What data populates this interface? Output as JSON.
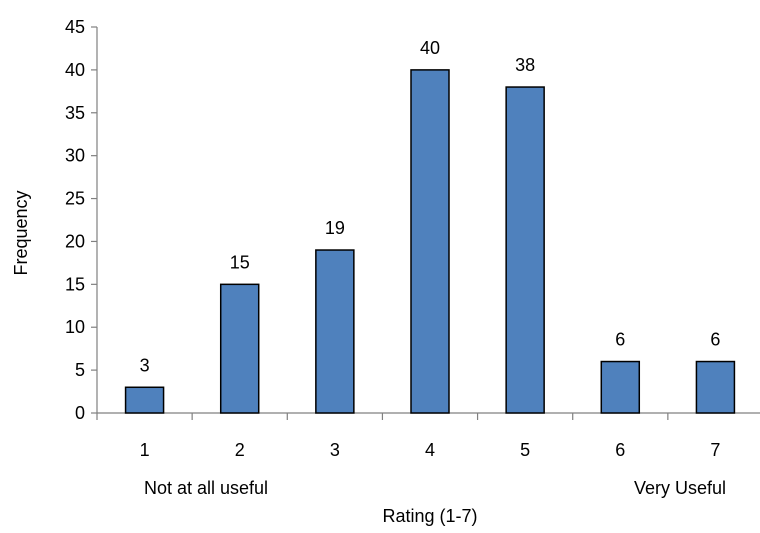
{
  "chart_data": {
    "type": "bar",
    "categories": [
      "1",
      "2",
      "3",
      "4",
      "5",
      "6",
      "7"
    ],
    "values": [
      3,
      15,
      19,
      40,
      38,
      6,
      6
    ],
    "data_labels": [
      "3",
      "15",
      "19",
      "40",
      "38",
      "6",
      "6"
    ],
    "title": "",
    "xlabel": "Rating  (1-7)",
    "ylabel": "Frequency",
    "ylim": [
      0,
      45
    ],
    "yticks": [
      0,
      5,
      10,
      15,
      20,
      25,
      30,
      35,
      40,
      45
    ],
    "ytick_labels": [
      "0",
      "5",
      "10",
      "15",
      "20",
      "25",
      "30",
      "35",
      "40",
      "45"
    ],
    "grid": false,
    "legend": "none",
    "annotations": {
      "low_end": "Not at all useful",
      "high_end": "Very Useful"
    },
    "colors": {
      "bar_fill": "#4f81bd",
      "bar_stroke": "#000000",
      "axis": "#808080"
    }
  }
}
